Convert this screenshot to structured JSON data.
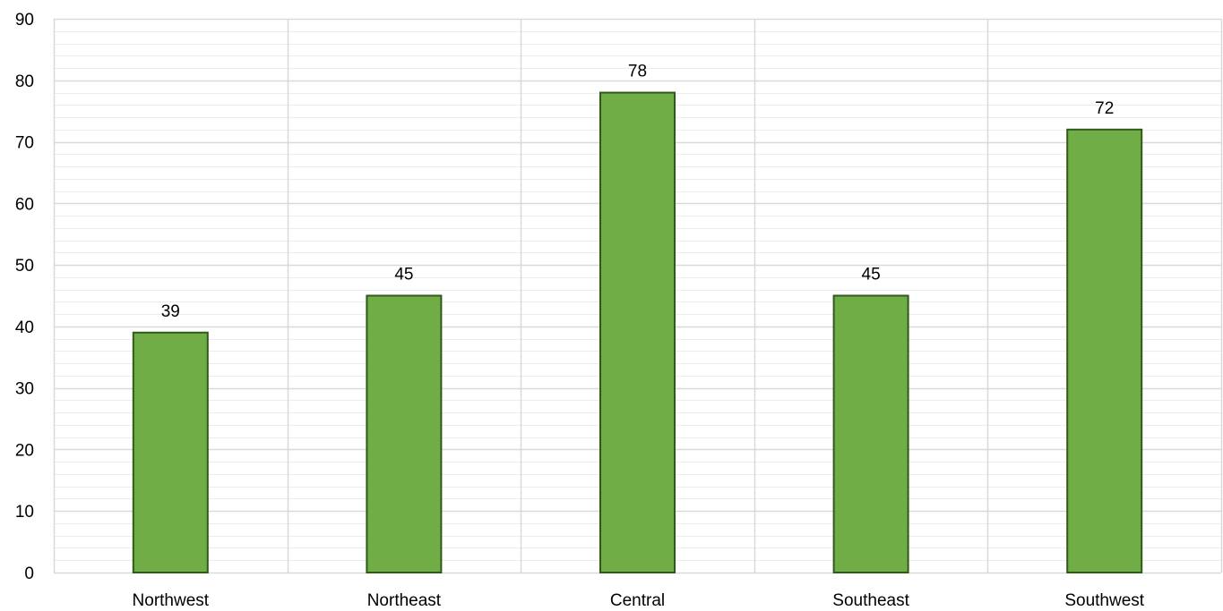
{
  "chart_data": {
    "type": "bar",
    "title": "",
    "xlabel": "",
    "ylabel": "",
    "categories": [
      "Northwest",
      "Northeast",
      "Central",
      "Southeast",
      "Southwest"
    ],
    "values": [
      39,
      45,
      78,
      45,
      72
    ],
    "ylim": [
      0,
      90
    ],
    "y_major_step": 10,
    "y_minor_step": 2,
    "grid": true,
    "data_labels": true,
    "legend": "none",
    "colors": {
      "bar_fill": "#70ad47",
      "bar_stroke": "#2f5a17",
      "major_grid": "#d9d9d9",
      "minor_grid": "#ececec",
      "vertical_grid": "#d9d9d9",
      "text": "#000000"
    }
  }
}
